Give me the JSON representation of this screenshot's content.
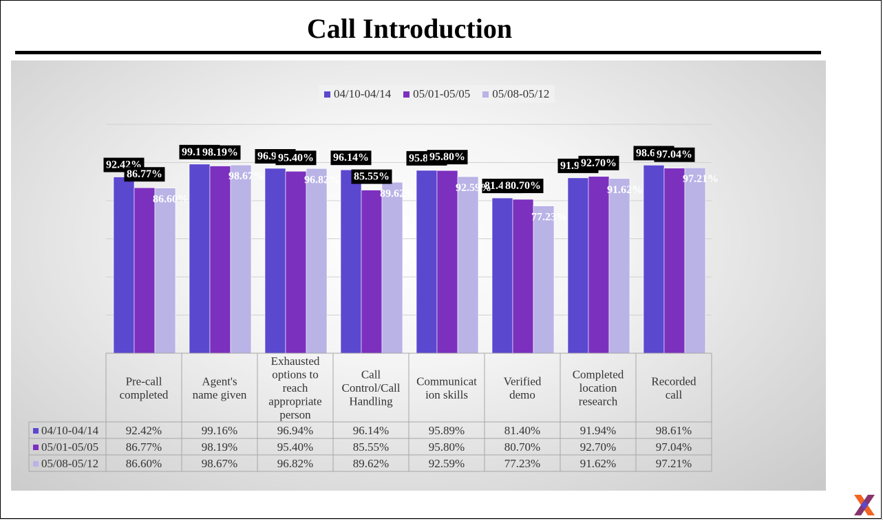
{
  "page": {
    "title": "Call Introduction"
  },
  "chart_data": {
    "type": "bar",
    "title": "",
    "categories": [
      "Pre-call completed",
      "Agent's name given",
      "Exhausted options to reach appropriate person",
      "Call Control/Call Handling",
      "Communication skills",
      "Verified demo",
      "Completed location research",
      "Recorded call"
    ],
    "category_lines": [
      [
        "Pre-call",
        "completed"
      ],
      [
        "Agent's",
        "name given"
      ],
      [
        "Exhausted",
        "options to",
        "reach",
        "appropriate",
        "person"
      ],
      [
        "Call",
        "Control/Call",
        "Handling"
      ],
      [
        "Communicat",
        "ion skills"
      ],
      [
        "Verified",
        "demo"
      ],
      [
        "Completed",
        "location",
        "research"
      ],
      [
        "Recorded",
        "call"
      ]
    ],
    "series": [
      {
        "name": "04/10-04/14",
        "color": "#5a48cf",
        "values": [
          92.42,
          99.16,
          96.94,
          96.14,
          95.89,
          81.4,
          91.94,
          98.61
        ],
        "labels": [
          "92.42%",
          "99.16%",
          "96.94%",
          "96.14%",
          "95.89%",
          "81.40%",
          "91.94%",
          "98.61%"
        ]
      },
      {
        "name": "05/01-05/05",
        "color": "#7c30be",
        "values": [
          86.77,
          98.19,
          95.4,
          85.55,
          95.8,
          80.7,
          92.7,
          97.04
        ],
        "labels": [
          "86.77%",
          "98.19%",
          "95.40%",
          "85.55%",
          "95.80%",
          "80.70%",
          "92.70%",
          "97.04%"
        ]
      },
      {
        "name": "05/08-05/12",
        "color": "#b9b3e6",
        "values": [
          86.6,
          98.67,
          96.82,
          89.62,
          92.59,
          77.23,
          91.62,
          97.21
        ],
        "labels": [
          "86.60%",
          "98.67%",
          "96.82%",
          "89.62%",
          "92.59%",
          "77.23%",
          "91.62%",
          "97.21%"
        ]
      }
    ],
    "ylim": [
      0,
      120
    ],
    "grid": true,
    "legend": "top",
    "data_table": true
  }
}
